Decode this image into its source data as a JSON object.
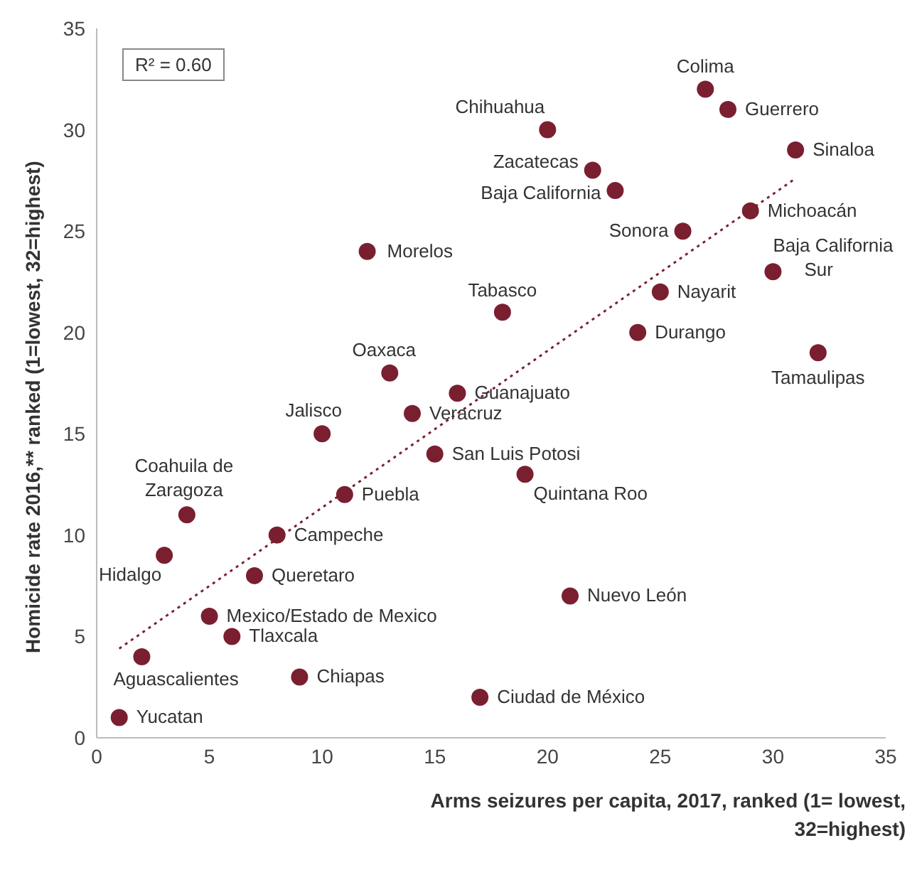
{
  "chart_data": {
    "type": "scatter",
    "xlabel": "Arms seizures per capita, 2017, ranked (1= lowest, 32=highest)",
    "ylabel": "Homicide rate 2016,** ranked (1=lowest, 32=highest)",
    "xlim": [
      0,
      35
    ],
    "xticks": [
      0,
      5,
      10,
      15,
      20,
      25,
      30,
      35
    ],
    "ylim": [
      0,
      35
    ],
    "yticks": [
      0,
      5,
      10,
      15,
      20,
      25,
      30,
      35
    ],
    "grid": false,
    "legend": false,
    "marker": "circle",
    "series": [
      {
        "color": "#7a1f30",
        "x": [
          27,
          28,
          31,
          20,
          22,
          23,
          29,
          26,
          12,
          30,
          25,
          18,
          24,
          32,
          13,
          16,
          14,
          10,
          15,
          19,
          11,
          4,
          8,
          3,
          7,
          21,
          5,
          6,
          2,
          9,
          17,
          1
        ],
        "values": [
          32,
          31,
          29,
          30,
          28,
          27,
          26,
          25,
          24,
          23,
          22,
          21,
          20,
          19,
          18,
          17,
          16,
          15,
          14,
          13,
          12,
          11,
          10,
          9,
          8,
          7,
          6,
          5,
          4,
          3,
          2,
          1
        ]
      },
      {
        "type": "line",
        "color": "#7a1f30",
        "line_style": "dotted",
        "marker": "none",
        "x": [
          1,
          31
        ],
        "values": [
          4.4,
          27.6
        ]
      }
    ],
    "annotations": [
      "R² = 0.60",
      {
        "text": "Colima",
        "x": 27,
        "y": 32
      },
      {
        "text": "Guerrero",
        "x": 28,
        "y": 31
      },
      {
        "text": "Sinaloa",
        "x": 31,
        "y": 29
      },
      {
        "text": "Chihuahua",
        "x": 20,
        "y": 30
      },
      {
        "text": "Zacatecas",
        "x": 22,
        "y": 28
      },
      {
        "text": "Baja California",
        "x": 23,
        "y": 27
      },
      {
        "text": "Michoacán",
        "x": 29,
        "y": 26
      },
      {
        "text": "Sonora",
        "x": 26,
        "y": 25
      },
      {
        "text": "Morelos",
        "x": 12,
        "y": 24
      },
      {
        "text": "Baja California Sur",
        "x": 30,
        "y": 23
      },
      {
        "text": "Nayarit",
        "x": 25,
        "y": 22
      },
      {
        "text": "Tabasco",
        "x": 18,
        "y": 21
      },
      {
        "text": "Durango",
        "x": 24,
        "y": 20
      },
      {
        "text": "Tamaulipas",
        "x": 32,
        "y": 19
      },
      {
        "text": "Oaxaca",
        "x": 13,
        "y": 18
      },
      {
        "text": "Guanajuato",
        "x": 16,
        "y": 17
      },
      {
        "text": "Veracruz",
        "x": 14,
        "y": 16
      },
      {
        "text": "Jalisco",
        "x": 10,
        "y": 15
      },
      {
        "text": "San Luis Potosi",
        "x": 15,
        "y": 14
      },
      {
        "text": "Quintana Roo",
        "x": 19,
        "y": 13
      },
      {
        "text": "Puebla",
        "x": 11,
        "y": 12
      },
      {
        "text": "Coahuila de Zaragoza",
        "x": 4,
        "y": 11
      },
      {
        "text": "Campeche",
        "x": 8,
        "y": 10
      },
      {
        "text": "Hidalgo",
        "x": 3,
        "y": 9
      },
      {
        "text": "Queretaro",
        "x": 7,
        "y": 8
      },
      {
        "text": "Nuevo León",
        "x": 21,
        "y": 7
      },
      {
        "text": "Mexico/Estado de Mexico",
        "x": 5,
        "y": 6
      },
      {
        "text": "Tlaxcala",
        "x": 6,
        "y": 5
      },
      {
        "text": "Aguascalientes",
        "x": 2,
        "y": 4
      },
      {
        "text": "Chiapas",
        "x": 9,
        "y": 3
      },
      {
        "text": "Ciudad de México",
        "x": 17,
        "y": 2
      },
      {
        "text": "Yucatan",
        "x": 1,
        "y": 1
      }
    ]
  }
}
